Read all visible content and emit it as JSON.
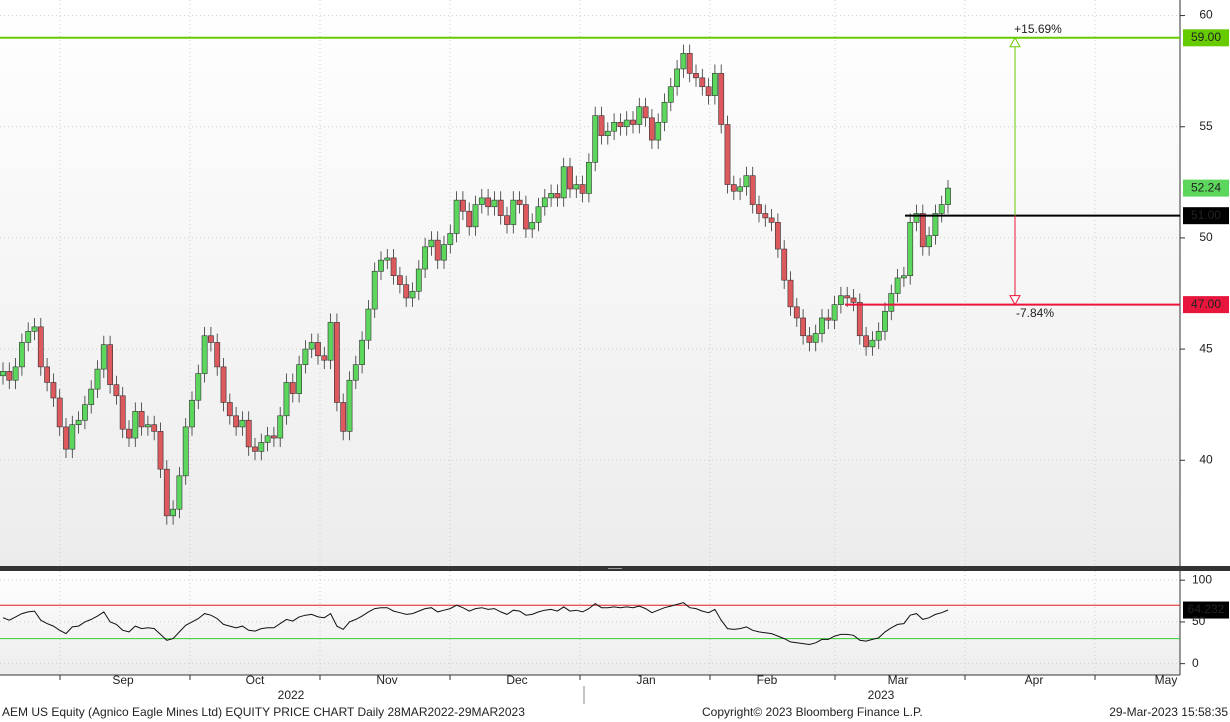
{
  "chart_data": {
    "type": "candlestick",
    "title": "AEM US Equity (Agnico Eagle Mines Ltd) EQUITY PRICE CHART  Daily 28MAR2022-29MAR2023",
    "copyright": "Copyright© 2023 Bloomberg Finance L.P.",
    "timestamp": "29-Mar-2023 15:58:35",
    "months": [
      "Sep",
      "Oct",
      "Nov",
      "Dec",
      "Jan",
      "Feb",
      "Mar",
      "Apr",
      "May"
    ],
    "years": [
      "2022",
      "2023"
    ],
    "up_color": "#5cd65c",
    "down_color": "#dc5a5e",
    "ylim": [
      35.2,
      60.7
    ],
    "yticks": [
      40,
      45,
      50,
      55,
      60
    ],
    "open": [
      43.8,
      44.0,
      43.6,
      44.2,
      45.3,
      45.8,
      46.0,
      44.2,
      43.5,
      42.8,
      41.5,
      40.5,
      41.6,
      41.8,
      42.5,
      43.2,
      44.1,
      45.2,
      43.4,
      42.9,
      41.4,
      41.0,
      42.2,
      41.5,
      41.6,
      41.3,
      39.6,
      37.5,
      37.8,
      39.3,
      41.5,
      42.7,
      43.9,
      45.6,
      45.3,
      44.2,
      42.6,
      42.0,
      41.5,
      41.8,
      40.6,
      40.4,
      40.8,
      41.1,
      41.0,
      42.0,
      43.5,
      43.0,
      44.3,
      45.0,
      45.3,
      44.7,
      44.5,
      46.2,
      42.6,
      41.3,
      43.6,
      44.3,
      45.4,
      46.8,
      48.5,
      49.0,
      49.1,
      48.3,
      47.9,
      47.3,
      47.6,
      48.6,
      49.6,
      49.9,
      49.0,
      49.7,
      50.2,
      51.7,
      51.2,
      50.5,
      51.5,
      51.8,
      51.4,
      51.7,
      51.0,
      50.6,
      51.7,
      51.5,
      50.4,
      50.7,
      51.4,
      51.8,
      52.0,
      51.8,
      53.2,
      52.2,
      52.4,
      52.0,
      53.4,
      55.5,
      54.6,
      54.8,
      55.2,
      55.0,
      55.3,
      55.1,
      55.9,
      55.4,
      54.4,
      55.2,
      56.1,
      56.8,
      57.6,
      58.3,
      57.4,
      57.2,
      56.8,
      56.4,
      57.4,
      55.1,
      52.4,
      52.1,
      52.3,
      52.8,
      51.5,
      51.1,
      50.9,
      50.7,
      49.5,
      48.1,
      46.9,
      46.4,
      45.6,
      45.3,
      45.7,
      46.4,
      46.3,
      47.0,
      47.4,
      47.3,
      47.1,
      45.6,
      45.1,
      45.4,
      45.8,
      46.7,
      47.5,
      48.2,
      48.3,
      50.7,
      51.1,
      49.6,
      50.1,
      51.1,
      51.5
    ],
    "high": [
      44.4,
      44.4,
      44.6,
      45.7,
      46.2,
      46.4,
      46.4,
      44.6,
      43.9,
      43.2,
      41.9,
      42.0,
      42.2,
      42.9,
      43.6,
      44.5,
      45.6,
      45.6,
      43.8,
      43.3,
      41.8,
      42.6,
      42.6,
      42.0,
      42.0,
      41.7,
      40.0,
      38.2,
      39.7,
      41.9,
      43.1,
      44.3,
      46.0,
      46.0,
      45.7,
      44.6,
      43.0,
      42.4,
      42.2,
      42.2,
      41.0,
      41.2,
      41.5,
      41.5,
      42.4,
      43.9,
      43.9,
      44.7,
      45.4,
      45.7,
      45.7,
      45.1,
      46.6,
      46.6,
      43.0,
      44.0,
      44.7,
      45.8,
      47.2,
      48.9,
      49.4,
      49.5,
      49.5,
      48.7,
      48.3,
      48.0,
      49.0,
      50.0,
      50.3,
      50.3,
      50.1,
      50.6,
      52.1,
      52.1,
      51.6,
      51.9,
      52.2,
      52.2,
      52.1,
      52.1,
      51.4,
      52.1,
      52.1,
      51.9,
      51.1,
      51.8,
      52.2,
      52.4,
      52.4,
      53.6,
      53.6,
      52.8,
      52.8,
      53.8,
      55.9,
      55.9,
      55.2,
      55.6,
      55.6,
      55.7,
      55.7,
      56.3,
      56.3,
      55.8,
      55.6,
      56.5,
      57.2,
      58.0,
      58.7,
      58.7,
      57.8,
      57.6,
      57.2,
      57.8,
      57.8,
      55.5,
      52.8,
      52.7,
      53.2,
      53.2,
      51.9,
      51.5,
      51.3,
      51.1,
      49.9,
      48.5,
      47.3,
      46.8,
      46.0,
      46.1,
      46.8,
      46.8,
      47.4,
      47.8,
      47.8,
      47.7,
      47.5,
      46.0,
      45.8,
      46.2,
      47.1,
      47.9,
      48.6,
      48.7,
      51.1,
      51.5,
      51.5,
      50.5,
      51.5,
      51.9,
      52.6
    ],
    "low": [
      43.4,
      43.2,
      43.2,
      43.8,
      44.9,
      45.4,
      43.8,
      43.1,
      42.4,
      41.1,
      40.1,
      40.1,
      41.2,
      41.4,
      42.1,
      42.8,
      43.7,
      43.0,
      42.5,
      41.0,
      40.6,
      40.6,
      41.1,
      41.1,
      40.9,
      39.2,
      37.1,
      37.1,
      37.4,
      38.9,
      41.1,
      42.3,
      43.5,
      44.9,
      43.8,
      42.2,
      41.6,
      41.1,
      41.1,
      40.2,
      40.0,
      40.0,
      40.4,
      40.6,
      40.6,
      41.6,
      42.6,
      42.6,
      43.9,
      44.6,
      44.3,
      44.1,
      44.1,
      42.2,
      40.9,
      40.9,
      43.2,
      43.9,
      45.0,
      46.4,
      48.1,
      48.6,
      47.9,
      47.5,
      46.9,
      46.9,
      47.2,
      48.2,
      49.2,
      48.6,
      48.6,
      49.3,
      49.8,
      50.8,
      50.1,
      50.1,
      51.1,
      51.0,
      51.0,
      50.6,
      50.2,
      50.2,
      51.1,
      50.0,
      50.0,
      50.3,
      51.0,
      51.4,
      51.4,
      51.4,
      51.8,
      51.8,
      51.6,
      51.6,
      53.0,
      54.2,
      54.2,
      54.4,
      54.6,
      54.6,
      54.7,
      54.7,
      55.0,
      54.0,
      54.0,
      54.8,
      55.7,
      56.4,
      57.2,
      57.0,
      56.8,
      56.4,
      56.0,
      56.0,
      54.7,
      52.0,
      51.7,
      51.7,
      51.9,
      51.1,
      50.7,
      50.5,
      50.3,
      49.1,
      47.7,
      46.5,
      46.0,
      45.2,
      44.9,
      44.9,
      45.3,
      45.9,
      45.9,
      46.6,
      46.9,
      46.7,
      45.2,
      44.7,
      44.7,
      45.0,
      45.4,
      46.3,
      47.1,
      47.8,
      47.9,
      50.3,
      49.2,
      49.2,
      49.7,
      50.7,
      51.1
    ],
    "close": [
      44.0,
      43.6,
      44.2,
      45.3,
      45.8,
      46.0,
      44.2,
      43.5,
      42.8,
      41.5,
      40.5,
      41.6,
      41.8,
      42.5,
      43.2,
      44.1,
      45.2,
      43.4,
      42.9,
      41.4,
      41.0,
      42.2,
      41.5,
      41.6,
      41.3,
      39.6,
      37.5,
      37.8,
      39.3,
      41.5,
      42.7,
      43.9,
      45.6,
      45.3,
      44.2,
      42.6,
      42.0,
      41.5,
      41.8,
      40.6,
      40.4,
      40.8,
      41.1,
      41.0,
      42.0,
      43.5,
      43.0,
      44.3,
      45.0,
      45.3,
      44.7,
      44.5,
      46.2,
      42.6,
      41.3,
      43.6,
      44.3,
      45.4,
      46.8,
      48.5,
      49.0,
      49.1,
      48.3,
      47.9,
      47.3,
      47.6,
      48.6,
      49.6,
      49.9,
      49.0,
      49.7,
      50.2,
      51.7,
      51.2,
      50.5,
      51.5,
      51.8,
      51.4,
      51.7,
      51.0,
      50.6,
      51.7,
      51.5,
      50.4,
      50.7,
      51.4,
      51.8,
      52.0,
      51.8,
      53.2,
      52.2,
      52.4,
      52.0,
      53.4,
      55.5,
      54.6,
      54.8,
      55.2,
      55.0,
      55.3,
      55.1,
      55.9,
      55.4,
      54.4,
      55.2,
      56.1,
      56.8,
      57.6,
      58.3,
      57.4,
      57.2,
      56.8,
      56.4,
      57.4,
      55.1,
      52.4,
      52.1,
      52.3,
      52.8,
      51.5,
      51.1,
      50.9,
      50.7,
      49.5,
      48.1,
      46.9,
      46.4,
      45.6,
      45.3,
      45.7,
      46.4,
      46.3,
      47.0,
      47.4,
      47.3,
      47.1,
      45.6,
      45.1,
      45.4,
      45.8,
      46.7,
      47.5,
      48.2,
      48.3,
      50.7,
      51.1,
      49.6,
      50.1,
      51.1,
      51.5,
      52.24
    ],
    "levels": [
      {
        "value": 59,
        "label": "59.00",
        "color": "#66cc00"
      },
      {
        "value": 51,
        "label": "51.00",
        "color": "#000000"
      },
      {
        "value": 47,
        "label": "47.00",
        "color": "#e8163c"
      }
    ],
    "annotations": [
      "+15.69%",
      "-7.84%"
    ],
    "rsi_ylim": [
      -13.6,
      111
    ],
    "rsi_yticks": [
      0,
      50,
      100
    ],
    "rsi_upper": 70,
    "rsi_lower": 30,
    "rsi_upper_color": "#e02020",
    "rsi_lower_color": "#33cc33",
    "rsi": [
      55,
      52,
      56,
      60,
      62,
      63,
      52,
      48,
      45,
      40,
      36,
      44,
      45,
      50,
      53,
      57,
      62,
      50,
      47,
      40,
      38,
      45,
      42,
      43,
      42,
      35,
      28,
      30,
      38,
      46,
      50,
      54,
      60,
      58,
      54,
      47,
      45,
      43,
      45,
      40,
      39,
      42,
      43,
      43,
      48,
      53,
      51,
      56,
      58,
      59,
      56,
      55,
      60,
      45,
      41,
      50,
      53,
      57,
      62,
      66,
      67,
      67,
      63,
      61,
      59,
      60,
      63,
      66,
      67,
      62,
      64,
      66,
      70,
      67,
      63,
      66,
      67,
      65,
      66,
      62,
      59,
      64,
      63,
      58,
      59,
      62,
      64,
      65,
      63,
      68,
      63,
      64,
      62,
      66,
      72,
      67,
      67,
      68,
      67,
      68,
      67,
      69,
      66,
      61,
      64,
      67,
      69,
      71,
      73,
      67,
      66,
      63,
      61,
      65,
      52,
      42,
      41,
      42,
      44,
      40,
      38,
      37,
      36,
      33,
      30,
      26,
      25,
      24,
      23,
      25,
      29,
      29,
      33,
      35,
      35,
      34,
      28,
      27,
      29,
      31,
      38,
      43,
      47,
      48,
      58,
      60,
      53,
      55,
      59,
      61,
      64.232
    ]
  }
}
